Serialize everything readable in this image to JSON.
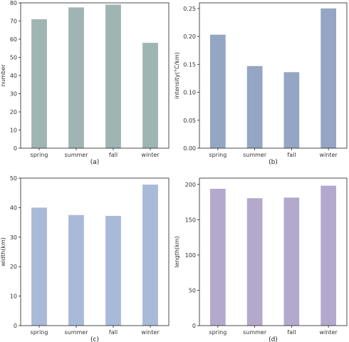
{
  "chart_data": [
    {
      "type": "bar",
      "categories": [
        "spring",
        "summer",
        "fall",
        "winter"
      ],
      "values": [
        71,
        77.5,
        79,
        58
      ],
      "ylabel": "number",
      "caption": "(a)",
      "ylim": [
        0,
        80
      ],
      "yticks": [
        "0",
        "10",
        "20",
        "30",
        "40",
        "50",
        "60",
        "70",
        "80"
      ],
      "color": "#9fb5b3"
    },
    {
      "type": "bar",
      "categories": [
        "spring",
        "summer",
        "fall",
        "winter"
      ],
      "values": [
        0.203,
        0.147,
        0.136,
        0.25
      ],
      "ylabel": "intensity(°C/km)",
      "caption": "(b)",
      "ylim": [
        0,
        0.25
      ],
      "yticks": [
        "0.00",
        "0.05",
        "0.10",
        "0.15",
        "0.20",
        "0.25"
      ],
      "color": "#94a6c4"
    },
    {
      "type": "bar",
      "categories": [
        "spring",
        "summer",
        "fall",
        "winter"
      ],
      "values": [
        40,
        37.5,
        37.2,
        47.8
      ],
      "ylabel": "width(km)",
      "caption": "(c)",
      "ylim": [
        0,
        50
      ],
      "yticks": [
        "0",
        "10",
        "20",
        "30",
        "40",
        "50"
      ],
      "color": "#a9bad9"
    },
    {
      "type": "bar",
      "categories": [
        "spring",
        "summer",
        "fall",
        "winter"
      ],
      "values": [
        218,
        203,
        204,
        223
      ],
      "ylabel": "length(km)",
      "caption": "(d)",
      "ylim": [
        0,
        225
      ],
      "yticks": [
        "0",
        "50",
        "100",
        "150",
        "200"
      ],
      "color": "#b3a9cc"
    }
  ]
}
